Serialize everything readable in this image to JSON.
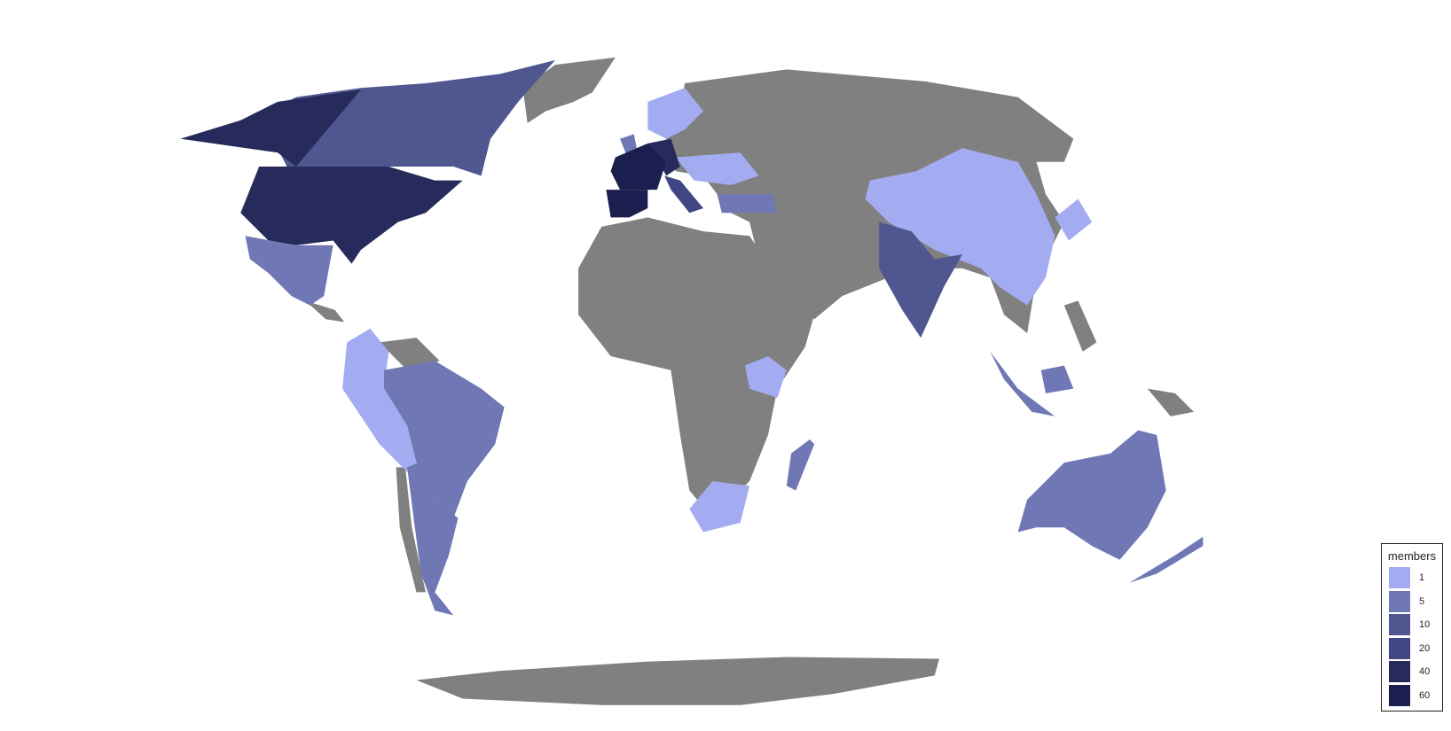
{
  "legend": {
    "title": "members",
    "items": [
      {
        "label": "1",
        "color": "#a3acf0"
      },
      {
        "label": "5",
        "color": "#6f78b5"
      },
      {
        "label": "10",
        "color": "#4f5690"
      },
      {
        "label": "20",
        "color": "#3f4683"
      },
      {
        "label": "40",
        "color": "#272b5b"
      },
      {
        "label": "60",
        "color": "#1b1f50"
      }
    ]
  },
  "no_data_color": "#808080",
  "country_members_bin": {
    "United States": "40",
    "Canada": "10",
    "Mexico": "5",
    "Brazil": "5",
    "Argentina": "5",
    "Colombia/Peru/Bolivia": "1",
    "France": "60",
    "Spain": "60",
    "Germany": "40",
    "Italy": "20",
    "United Kingdom": "5",
    "Scandinavia": "1",
    "Eastern Europe": "1",
    "Turkey": "5",
    "China": "1",
    "India": "10",
    "Japan": "1",
    "Indonesia": "5",
    "Malaysia": "5",
    "Australia": "5",
    "New Zealand": "5",
    "South Africa": "1",
    "Madagascar": "5",
    "Kenya": "1"
  }
}
